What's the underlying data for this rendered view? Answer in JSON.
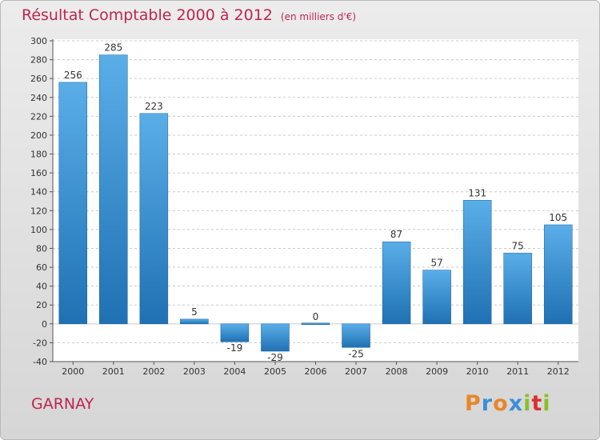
{
  "chart_data": {
    "type": "bar",
    "title": "Résultat Comptable 2000 à 2012",
    "unit_label": "(en milliers d'€)",
    "categories": [
      "2000",
      "2001",
      "2002",
      "2003",
      "2004",
      "2005",
      "2006",
      "2007",
      "2008",
      "2009",
      "2010",
      "2011",
      "2012"
    ],
    "values": [
      256,
      285,
      223,
      5,
      -19,
      -29,
      0,
      -25,
      87,
      57,
      131,
      75,
      105
    ],
    "ylim": [
      -40,
      300
    ],
    "yticks": [
      -40,
      -20,
      0,
      20,
      40,
      60,
      80,
      100,
      120,
      140,
      160,
      180,
      200,
      220,
      240,
      260,
      280,
      300
    ],
    "xlabel": "",
    "ylabel": "",
    "grid": true
  },
  "commune": "GARNAY",
  "logo": {
    "letters": [
      "P",
      "r",
      "o",
      "x",
      "i",
      "t",
      "i"
    ]
  },
  "colors": {
    "title": "#c0254e",
    "bar_light": "#5aaee8",
    "bar_dark": "#1f71b3",
    "grid": "#c9c9c9",
    "logo": [
      "#e8862a",
      "#3a8fd8",
      "#e8862a",
      "#3a8fd8",
      "#8cbf2a",
      "#d8332d",
      "#8cbf2a"
    ]
  }
}
